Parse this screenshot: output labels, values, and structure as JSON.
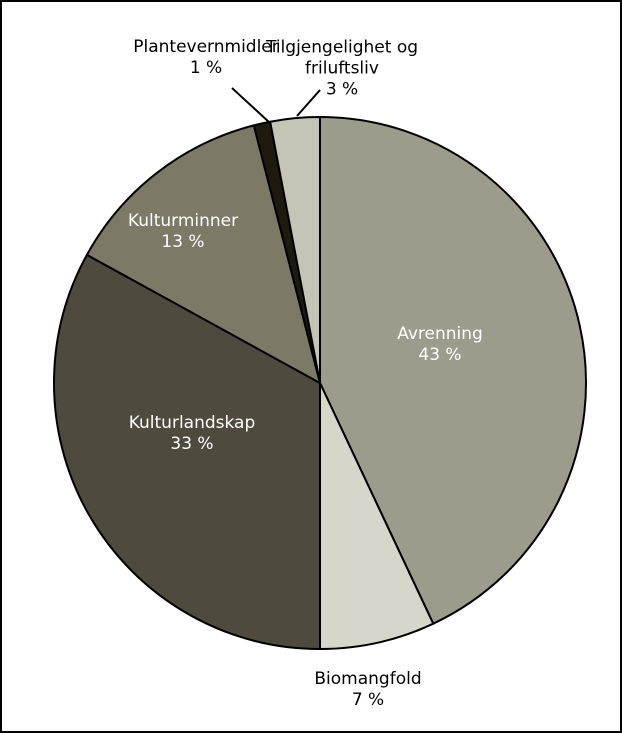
{
  "chart_data": {
    "type": "pie",
    "categories": [
      "Avrenning",
      "Biomangfold",
      "Kulturlandskap",
      "Kulturminner",
      "Plantevernmidler",
      "Tilgjengelighet og friluftsliv"
    ],
    "values": [
      43,
      7,
      33,
      13,
      1,
      3
    ],
    "value_labels": [
      "43 %",
      "7 %",
      "33 %",
      "13 %",
      "1 %",
      "3 %"
    ],
    "colors": [
      "#9d9b8b",
      "#d7d6cb",
      "#4f4a3e",
      "#7c7967",
      "#1f1a10",
      "#c5c4b7"
    ]
  }
}
